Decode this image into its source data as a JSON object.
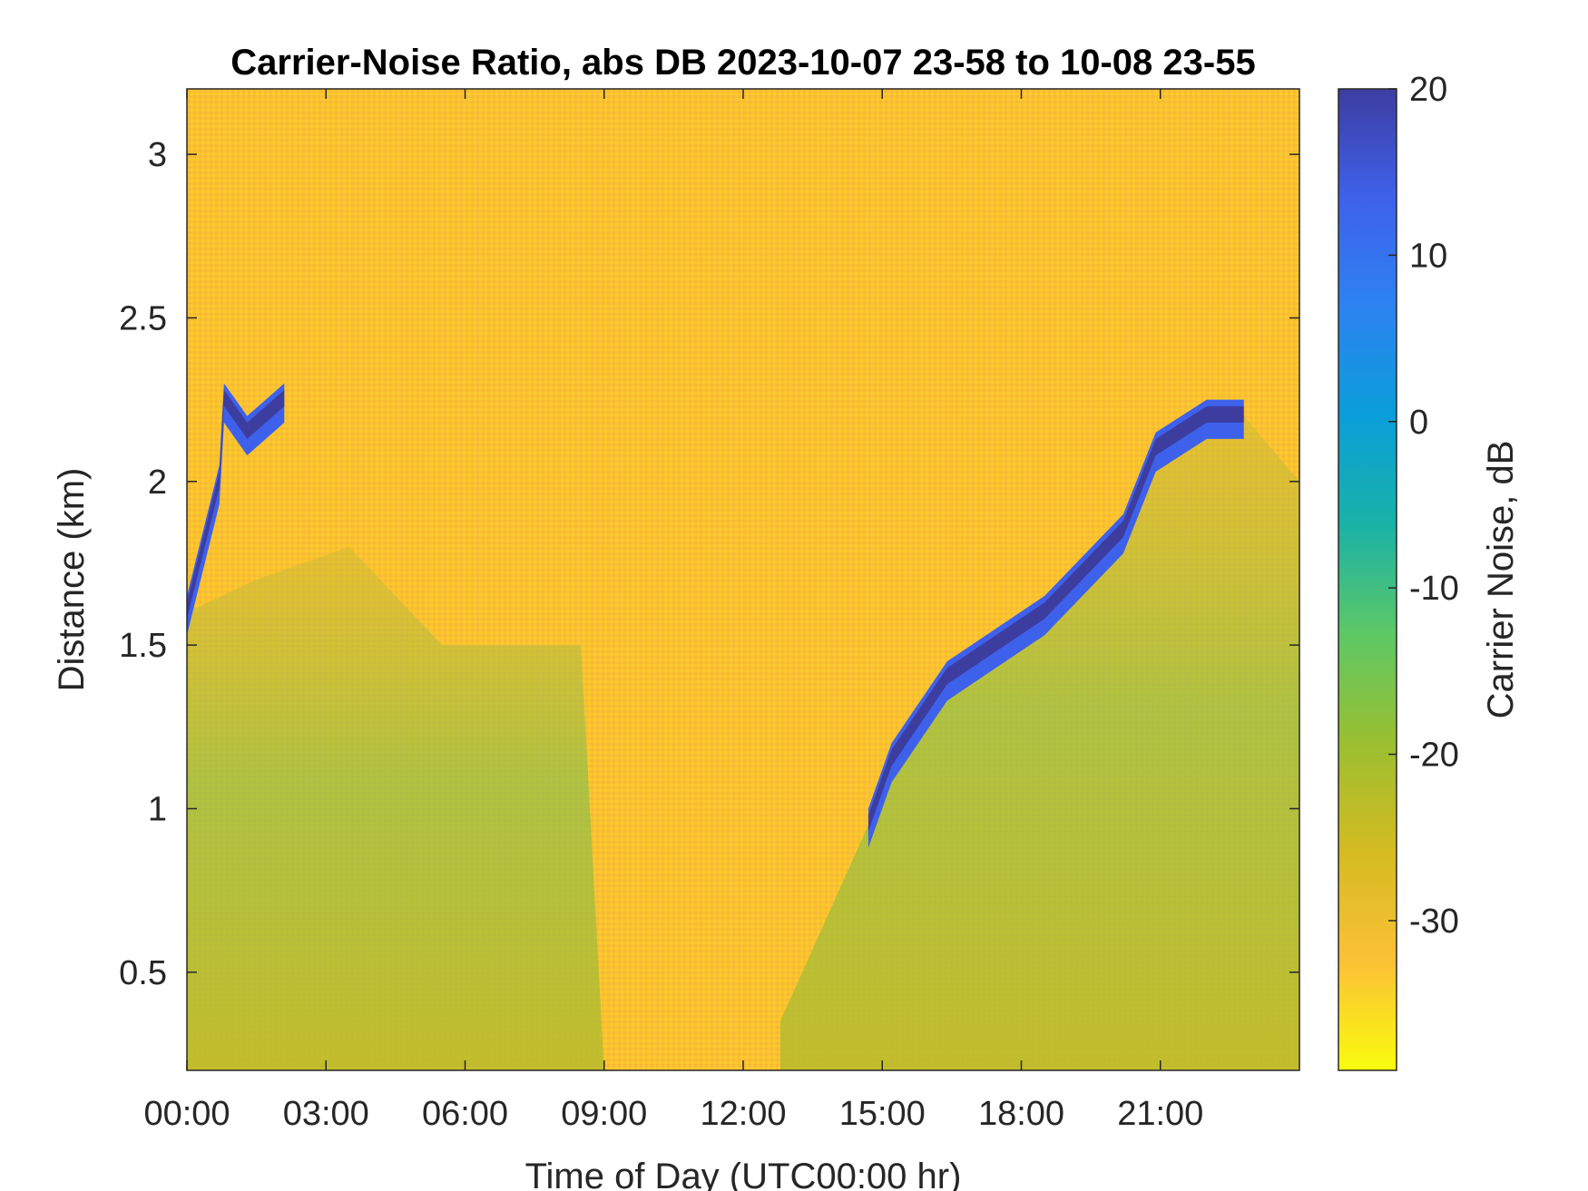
{
  "chart_data": {
    "type": "heatmap",
    "title": "Carrier-Noise Ratio, abs DB 2023-10-07 23-58 to 10-08 23-55",
    "xlabel": "Time of Day (UTC00:00 hr)",
    "ylabel": "Distance (km)",
    "colorbar_label": "Carrier Noise, dB",
    "xlim": [
      0,
      24
    ],
    "ylim": [
      0.2,
      3.2
    ],
    "clim": [
      -39,
      20
    ],
    "x_ticks": [
      0,
      3,
      6,
      9,
      12,
      15,
      18,
      21
    ],
    "x_tick_labels": [
      "00:00",
      "03:00",
      "06:00",
      "09:00",
      "12:00",
      "15:00",
      "18:00",
      "21:00"
    ],
    "y_ticks": [
      0.5,
      1,
      1.5,
      2,
      2.5,
      3
    ],
    "y_tick_labels": [
      "0.5",
      "1",
      "1.5",
      "2",
      "2.5",
      "3"
    ],
    "colorbar_ticks": [
      20,
      10,
      0,
      -10,
      -20,
      -30
    ],
    "colorbar_tick_labels": [
      "20",
      "10",
      "0",
      "-10",
      "-20",
      "-30"
    ],
    "colormap": [
      "#f9fb0e",
      "#fbc136",
      "#d5bb21",
      "#9bbf30",
      "#5dc865",
      "#1ab2a7",
      "#0a9ed9",
      "#2c83f0",
      "#3e61eb",
      "#3d3da0"
    ],
    "background_level_db": -33,
    "boundary_layer_top_km": [
      {
        "time_hr": 0.0,
        "height_km": 1.65
      },
      {
        "time_hr": 0.7,
        "height_km": 2.05
      },
      {
        "time_hr": 0.8,
        "height_km": 2.3
      },
      {
        "time_hr": 1.3,
        "height_km": 2.2
      },
      {
        "time_hr": 2.1,
        "height_km": 2.3
      },
      {
        "time_hr": 14.7,
        "height_km": 1.0
      },
      {
        "time_hr": 15.2,
        "height_km": 1.2
      },
      {
        "time_hr": 16.4,
        "height_km": 1.45
      },
      {
        "time_hr": 18.5,
        "height_km": 1.65
      },
      {
        "time_hr": 20.2,
        "height_km": 1.9
      },
      {
        "time_hr": 20.9,
        "height_km": 2.15
      },
      {
        "time_hr": 22.0,
        "height_km": 2.25
      },
      {
        "time_hr": 22.8,
        "height_km": 2.25
      }
    ],
    "grid": false,
    "legend": "colorbar-right"
  }
}
